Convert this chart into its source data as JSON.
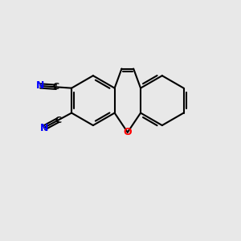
{
  "bg_color": "#e8e8e8",
  "bond_color": "#000000",
  "N_color": "#0000ff",
  "O_color": "#ff0000",
  "C_color": "#000000",
  "bond_width": 1.5,
  "fig_width": 3.0,
  "fig_height": 3.0,
  "dpi": 100,
  "xlim": [
    0,
    10
  ],
  "ylim": [
    0,
    10
  ]
}
